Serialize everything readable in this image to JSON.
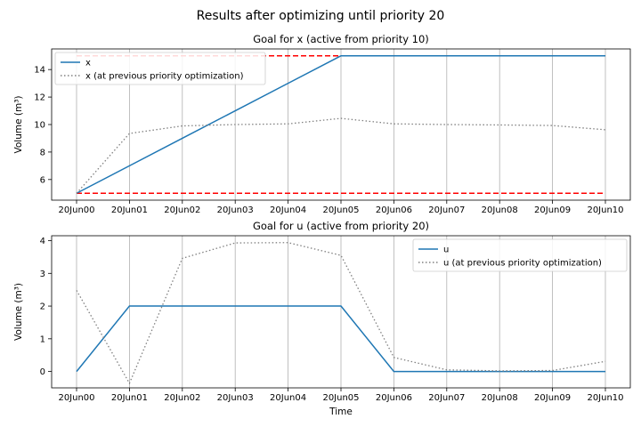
{
  "figure": {
    "suptitle": "Results after optimizing until priority 20"
  },
  "chart_data": [
    {
      "type": "line",
      "title": "Goal for x (active from priority 10)",
      "xlabel": "",
      "ylabel": "Volume (m³)",
      "categories": [
        "20Jun00",
        "20Jun01",
        "20Jun02",
        "20Jun03",
        "20Jun04",
        "20Jun05",
        "20Jun06",
        "20Jun07",
        "20Jun08",
        "20Jun09",
        "20Jun10"
      ],
      "ylim": [
        4.5,
        15.5
      ],
      "yticks": [
        6,
        8,
        10,
        12,
        14
      ],
      "grid": "x",
      "legend_position": "top-left",
      "series": [
        {
          "name": "x",
          "style": "solid",
          "color": "#1f77b4",
          "values": [
            5,
            7,
            9,
            11,
            13,
            15,
            15,
            15,
            15,
            15,
            15
          ]
        },
        {
          "name": "x (at previous priority optimization)",
          "style": "dotted",
          "color": "#808080",
          "values": [
            5,
            9.35,
            9.9,
            10.0,
            10.05,
            10.45,
            10.05,
            10.0,
            9.97,
            9.93,
            9.62
          ]
        }
      ],
      "reference_lines": [
        {
          "y": 15,
          "style": "dashed",
          "color": "#ff0000"
        },
        {
          "y": 5,
          "style": "dashed",
          "color": "#ff0000"
        }
      ]
    },
    {
      "type": "line",
      "title": "Goal for u (active from priority 20)",
      "xlabel": "Time",
      "ylabel": "Volume (m³)",
      "categories": [
        "20Jun00",
        "20Jun01",
        "20Jun02",
        "20Jun03",
        "20Jun04",
        "20Jun05",
        "20Jun06",
        "20Jun07",
        "20Jun08",
        "20Jun09",
        "20Jun10"
      ],
      "ylim": [
        -0.5,
        4.15
      ],
      "yticks": [
        0,
        1,
        2,
        3,
        4
      ],
      "grid": "x",
      "legend_position": "top-right",
      "series": [
        {
          "name": "u",
          "style": "solid",
          "color": "#1f77b4",
          "values": [
            0,
            2,
            2,
            2,
            2,
            2,
            0,
            0,
            0,
            0,
            0
          ]
        },
        {
          "name": "u (at previous priority optimization)",
          "style": "dotted",
          "color": "#808080",
          "values": [
            2.48,
            -0.36,
            3.46,
            3.93,
            3.94,
            3.55,
            0.43,
            0.05,
            0.02,
            0.03,
            0.31
          ]
        }
      ]
    }
  ]
}
